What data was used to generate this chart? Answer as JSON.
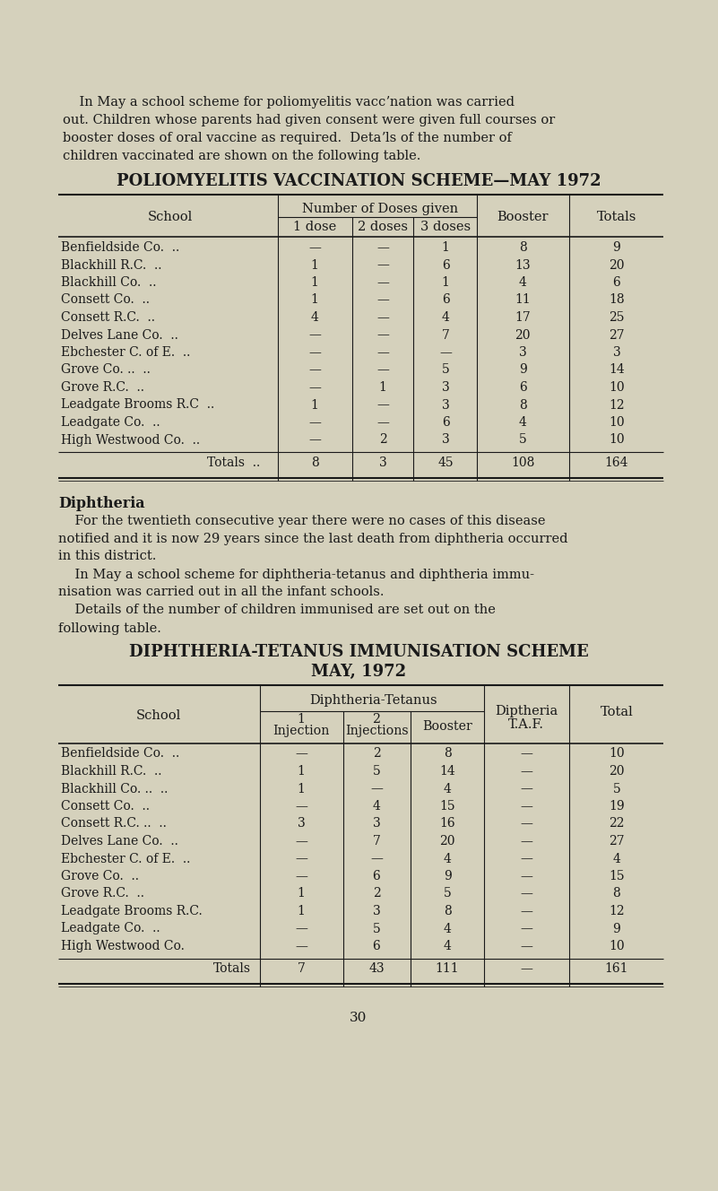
{
  "bg_color": "#d5d1bc",
  "text_color": "#1a1a1a",
  "page_number": "30",
  "table1_title": "POLIOMYELITIS VACCINATION SCHEME—MAY 1972",
  "table1_rows": [
    [
      "Benfieldside Co.  ..",
      "—",
      "—",
      "1",
      "8",
      "9"
    ],
    [
      "Blackhill R.C.  ..",
      "1",
      "—",
      "6",
      "13",
      "20"
    ],
    [
      "Blackhill Co.  ..",
      "1",
      "—",
      "1",
      "4",
      "6"
    ],
    [
      "Consett Co.  ..",
      "1",
      "—",
      "6",
      "11",
      "18"
    ],
    [
      "Consett R.C.  ..",
      "4",
      "—",
      "4",
      "17",
      "25"
    ],
    [
      "Delves Lane Co.  ..",
      "—",
      "—",
      "7",
      "20",
      "27"
    ],
    [
      "Ebchester C. of E.  ..",
      "—",
      "—",
      "—",
      "3",
      "3"
    ],
    [
      "Grove Co. ..  ..",
      "—",
      "—",
      "5",
      "9",
      "14"
    ],
    [
      "Grove R.C.  ..",
      "—",
      "1",
      "3",
      "6",
      "10"
    ],
    [
      "Leadgate Brooms R.C  ..",
      "1",
      "—",
      "3",
      "8",
      "12"
    ],
    [
      "Leadgate Co.  ..",
      "—",
      "—",
      "6",
      "4",
      "10"
    ],
    [
      "High Westwood Co.  ..",
      "—",
      "2",
      "3",
      "5",
      "10"
    ]
  ],
  "table1_totals": [
    "Totals  ..",
    "8",
    "3",
    "45",
    "108",
    "164"
  ],
  "diphtheria_heading": "Diphtheria",
  "table2_title_line1": "DIPHTHERIA-TETANUS IMMUNISATION SCHEME",
  "table2_title_line2": "MAY, 1972",
  "table2_rows": [
    [
      "Benfieldside Co.  ..",
      "—",
      "2",
      "8",
      "—",
      "10"
    ],
    [
      "Blackhill R.C.  ..",
      "1",
      "5",
      "14",
      "—",
      "20"
    ],
    [
      "Blackhill Co. ..  ..",
      "1",
      "—",
      "4",
      "—",
      "5"
    ],
    [
      "Consett Co.  ..",
      "—",
      "4",
      "15",
      "—",
      "19"
    ],
    [
      "Consett R.C. ..  ..",
      "3",
      "3",
      "16",
      "—",
      "22"
    ],
    [
      "Delves Lane Co.  ..",
      "—",
      "7",
      "20",
      "—",
      "27"
    ],
    [
      "Ebchester C. of E.  ..",
      "—",
      "—",
      "4",
      "—",
      "4"
    ],
    [
      "Grove Co.  ..",
      "—",
      "6",
      "9",
      "—",
      "15"
    ],
    [
      "Grove R.C.  ..",
      "1",
      "2",
      "5",
      "—",
      "8"
    ],
    [
      "Leadgate Brooms R.C.",
      "1",
      "3",
      "8",
      "—",
      "12"
    ],
    [
      "Leadgate Co.  ..",
      "—",
      "5",
      "4",
      "—",
      "9"
    ],
    [
      "High Westwood Co.",
      "—",
      "6",
      "4",
      "—",
      "10"
    ]
  ],
  "table2_totals": [
    "Totals",
    "7",
    "43",
    "111",
    "—",
    "161"
  ],
  "intro_lines": [
    "    In May a school scheme for poliomyelitis vaccʼnation was carried",
    "out. Children whose parents had given consent were given full courses or",
    "booster doses of oral vaccine as required.  Detaʼls of the number of",
    "children vaccinated are shown on the following table."
  ],
  "diph_lines": [
    "    For the twentieth consecutive year there were no cases of this disease",
    "notified and it is now 29 years since the last death from diphtheria occurred",
    "in this district.",
    "    In May a school scheme for diphtheria-tetanus and diphtheria immu-",
    "nisation was carried out in all the infant schools.",
    "    Details of the number of children immunised are set out on the",
    "following table."
  ]
}
